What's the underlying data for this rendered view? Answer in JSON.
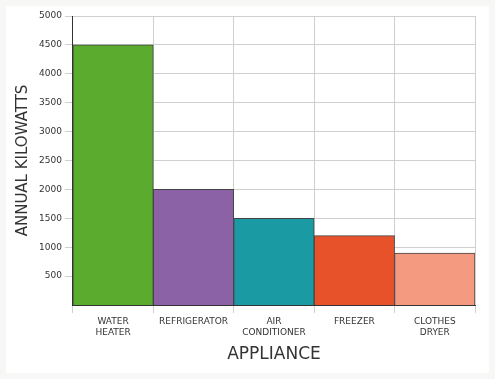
{
  "chart_data": {
    "type": "bar",
    "x_label": "APPLIANCE",
    "y_label": "ANNUAL KILOWATTS",
    "categories": [
      "WATER HEATER",
      "REFRIGERATOR",
      "AIR CONDITIONER",
      "FREEZER",
      "CLOTHES DRYER"
    ],
    "values": [
      4500,
      2000,
      1500,
      1200,
      900
    ],
    "colors": [
      "#5aab2e",
      "#8c62a6",
      "#1a9ba3",
      "#e8522a",
      "#f39a80"
    ],
    "ylim": [
      0,
      5000
    ],
    "yticks": [
      500,
      1000,
      1500,
      2000,
      2500,
      3000,
      3500,
      4000,
      4500,
      5000
    ],
    "grid": true
  }
}
